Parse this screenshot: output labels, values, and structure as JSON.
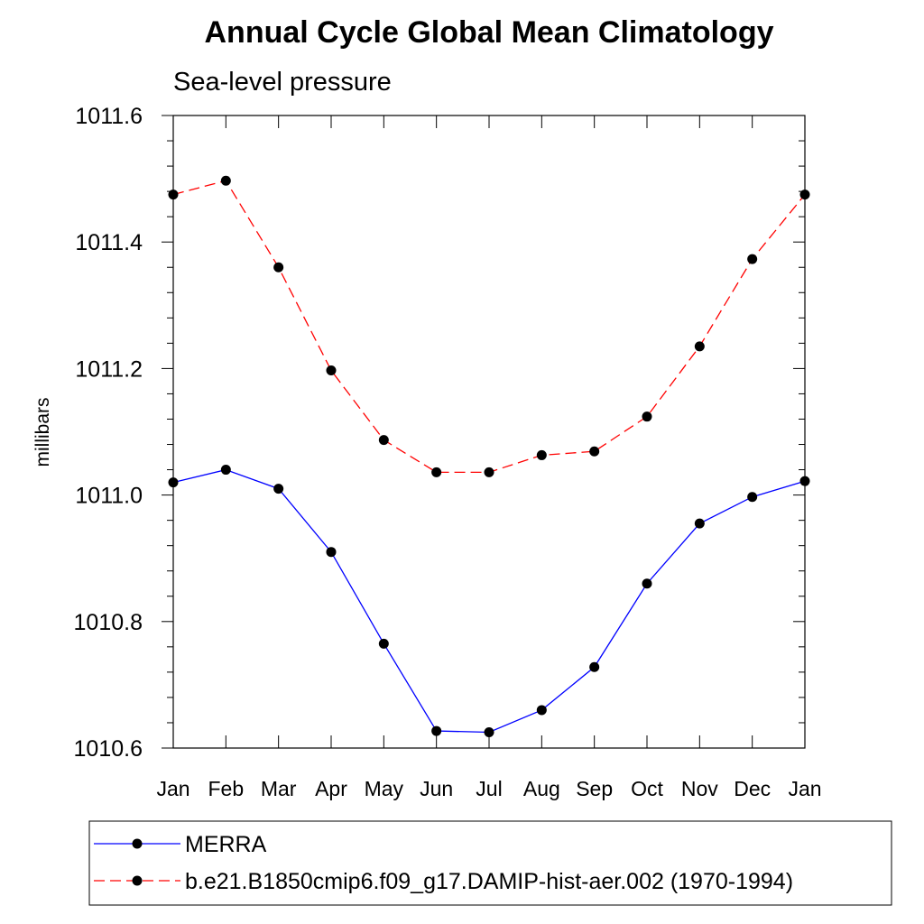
{
  "chart_data": {
    "type": "line",
    "title": "Annual Cycle Global Mean Climatology",
    "subtitle": "Sea-level pressure",
    "ylabel": "millibars",
    "xlabel": "",
    "categories": [
      "Jan",
      "Feb",
      "Mar",
      "Apr",
      "May",
      "Jun",
      "Jul",
      "Aug",
      "Sep",
      "Oct",
      "Nov",
      "Dec",
      "Jan"
    ],
    "ylim": [
      1010.6,
      1011.6
    ],
    "yticks": [
      "1010.6",
      "1010.8",
      "1011.0",
      "1011.2",
      "1011.4",
      "1011.6"
    ],
    "grid": false,
    "legend_position": "bottom",
    "series": [
      {
        "name": "MERRA",
        "color": "#0000ff",
        "line_style": "solid",
        "marker": "filled-circle",
        "values": [
          1011.02,
          1011.04,
          1011.01,
          1010.91,
          1010.765,
          1010.627,
          1010.625,
          1010.66,
          1010.728,
          1010.86,
          1010.955,
          1010.997,
          1011.022
        ]
      },
      {
        "name": "b.e21.B1850cmip6.f09_g17.DAMIP-hist-aer.002 (1970-1994)",
        "color": "#ff0000",
        "line_style": "dashed",
        "marker": "filled-circle",
        "values": [
          1011.475,
          1011.497,
          1011.36,
          1011.197,
          1011.087,
          1011.036,
          1011.036,
          1011.063,
          1011.069,
          1011.124,
          1011.235,
          1011.373,
          1011.475
        ]
      }
    ]
  }
}
